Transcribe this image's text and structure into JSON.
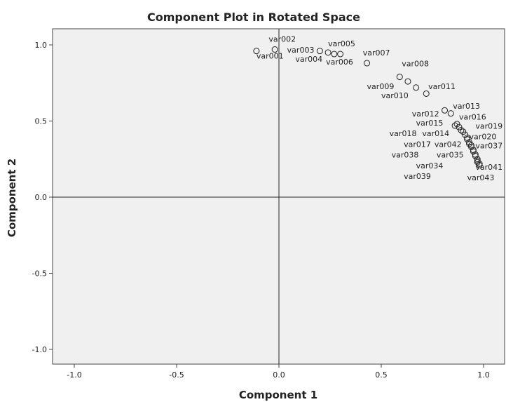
{
  "chart_data": {
    "type": "scatter",
    "title": "Component Plot in Rotated Space",
    "xlabel": "Component 1",
    "ylabel": "Component 2",
    "xlim": [
      -1.1,
      1.1
    ],
    "ylim": [
      -1.1,
      1.1
    ],
    "xticks": [
      -1.0,
      -0.5,
      0.0,
      0.5,
      1.0
    ],
    "yticks": [
      -1.0,
      -0.5,
      0.0,
      0.5,
      1.0
    ],
    "xtick_labels": [
      "-1.0",
      "-0.5",
      "0.0",
      "0.5",
      "1.0"
    ],
    "ytick_labels": [
      "-1.0",
      "-0.5",
      "0.0",
      "0.5",
      "1.0"
    ],
    "grid": false,
    "points": [
      {
        "x": -0.11,
        "y": 0.96
      },
      {
        "x": -0.02,
        "y": 0.97
      },
      {
        "x": 0.2,
        "y": 0.96
      },
      {
        "x": 0.24,
        "y": 0.95
      },
      {
        "x": 0.27,
        "y": 0.94
      },
      {
        "x": 0.3,
        "y": 0.94
      },
      {
        "x": 0.43,
        "y": 0.88
      },
      {
        "x": 0.59,
        "y": 0.79
      },
      {
        "x": 0.63,
        "y": 0.76
      },
      {
        "x": 0.67,
        "y": 0.72
      },
      {
        "x": 0.72,
        "y": 0.68
      },
      {
        "x": 0.81,
        "y": 0.57
      },
      {
        "x": 0.84,
        "y": 0.55
      },
      {
        "x": 0.86,
        "y": 0.47
      },
      {
        "x": 0.87,
        "y": 0.48
      },
      {
        "x": 0.88,
        "y": 0.46
      },
      {
        "x": 0.89,
        "y": 0.44
      },
      {
        "x": 0.9,
        "y": 0.43
      },
      {
        "x": 0.91,
        "y": 0.41
      },
      {
        "x": 0.92,
        "y": 0.39
      },
      {
        "x": 0.92,
        "y": 0.38
      },
      {
        "x": 0.93,
        "y": 0.36
      },
      {
        "x": 0.93,
        "y": 0.35
      },
      {
        "x": 0.94,
        "y": 0.34
      },
      {
        "x": 0.94,
        "y": 0.33
      },
      {
        "x": 0.95,
        "y": 0.31
      },
      {
        "x": 0.95,
        "y": 0.3
      },
      {
        "x": 0.96,
        "y": 0.28
      },
      {
        "x": 0.96,
        "y": 0.27
      },
      {
        "x": 0.97,
        "y": 0.25
      },
      {
        "x": 0.97,
        "y": 0.24
      },
      {
        "x": 0.97,
        "y": 0.23
      },
      {
        "x": 0.98,
        "y": 0.22
      },
      {
        "x": 0.98,
        "y": 0.21
      }
    ],
    "labels": [
      {
        "text": "var002",
        "x": -0.05,
        "y": 1.02
      },
      {
        "text": "var001",
        "x": -0.11,
        "y": 0.91
      },
      {
        "text": "var003",
        "x": 0.04,
        "y": 0.95
      },
      {
        "text": "var005",
        "x": 0.24,
        "y": 0.99
      },
      {
        "text": "var004",
        "x": 0.08,
        "y": 0.89
      },
      {
        "text": "var006",
        "x": 0.23,
        "y": 0.87
      },
      {
        "text": "var007",
        "x": 0.41,
        "y": 0.93
      },
      {
        "text": "var008",
        "x": 0.6,
        "y": 0.86
      },
      {
        "text": "var009",
        "x": 0.43,
        "y": 0.71
      },
      {
        "text": "var011",
        "x": 0.73,
        "y": 0.71
      },
      {
        "text": "var010",
        "x": 0.5,
        "y": 0.65
      },
      {
        "text": "var013",
        "x": 0.85,
        "y": 0.58
      },
      {
        "text": "var012",
        "x": 0.65,
        "y": 0.53
      },
      {
        "text": "var016",
        "x": 0.88,
        "y": 0.51
      },
      {
        "text": "var015",
        "x": 0.67,
        "y": 0.47
      },
      {
        "text": "var019",
        "x": 0.96,
        "y": 0.45
      },
      {
        "text": "var018",
        "x": 0.54,
        "y": 0.4
      },
      {
        "text": "var014",
        "x": 0.7,
        "y": 0.4
      },
      {
        "text": "var020",
        "x": 0.93,
        "y": 0.38
      },
      {
        "text": "var017",
        "x": 0.61,
        "y": 0.33
      },
      {
        "text": "var042",
        "x": 0.76,
        "y": 0.33
      },
      {
        "text": "var037",
        "x": 0.96,
        "y": 0.32
      },
      {
        "text": "var038",
        "x": 0.55,
        "y": 0.26
      },
      {
        "text": "var035",
        "x": 0.77,
        "y": 0.26
      },
      {
        "text": "var034",
        "x": 0.67,
        "y": 0.19
      },
      {
        "text": "var041",
        "x": 0.96,
        "y": 0.18
      },
      {
        "text": "var039",
        "x": 0.61,
        "y": 0.12
      },
      {
        "text": "var043",
        "x": 0.92,
        "y": 0.11
      }
    ]
  }
}
